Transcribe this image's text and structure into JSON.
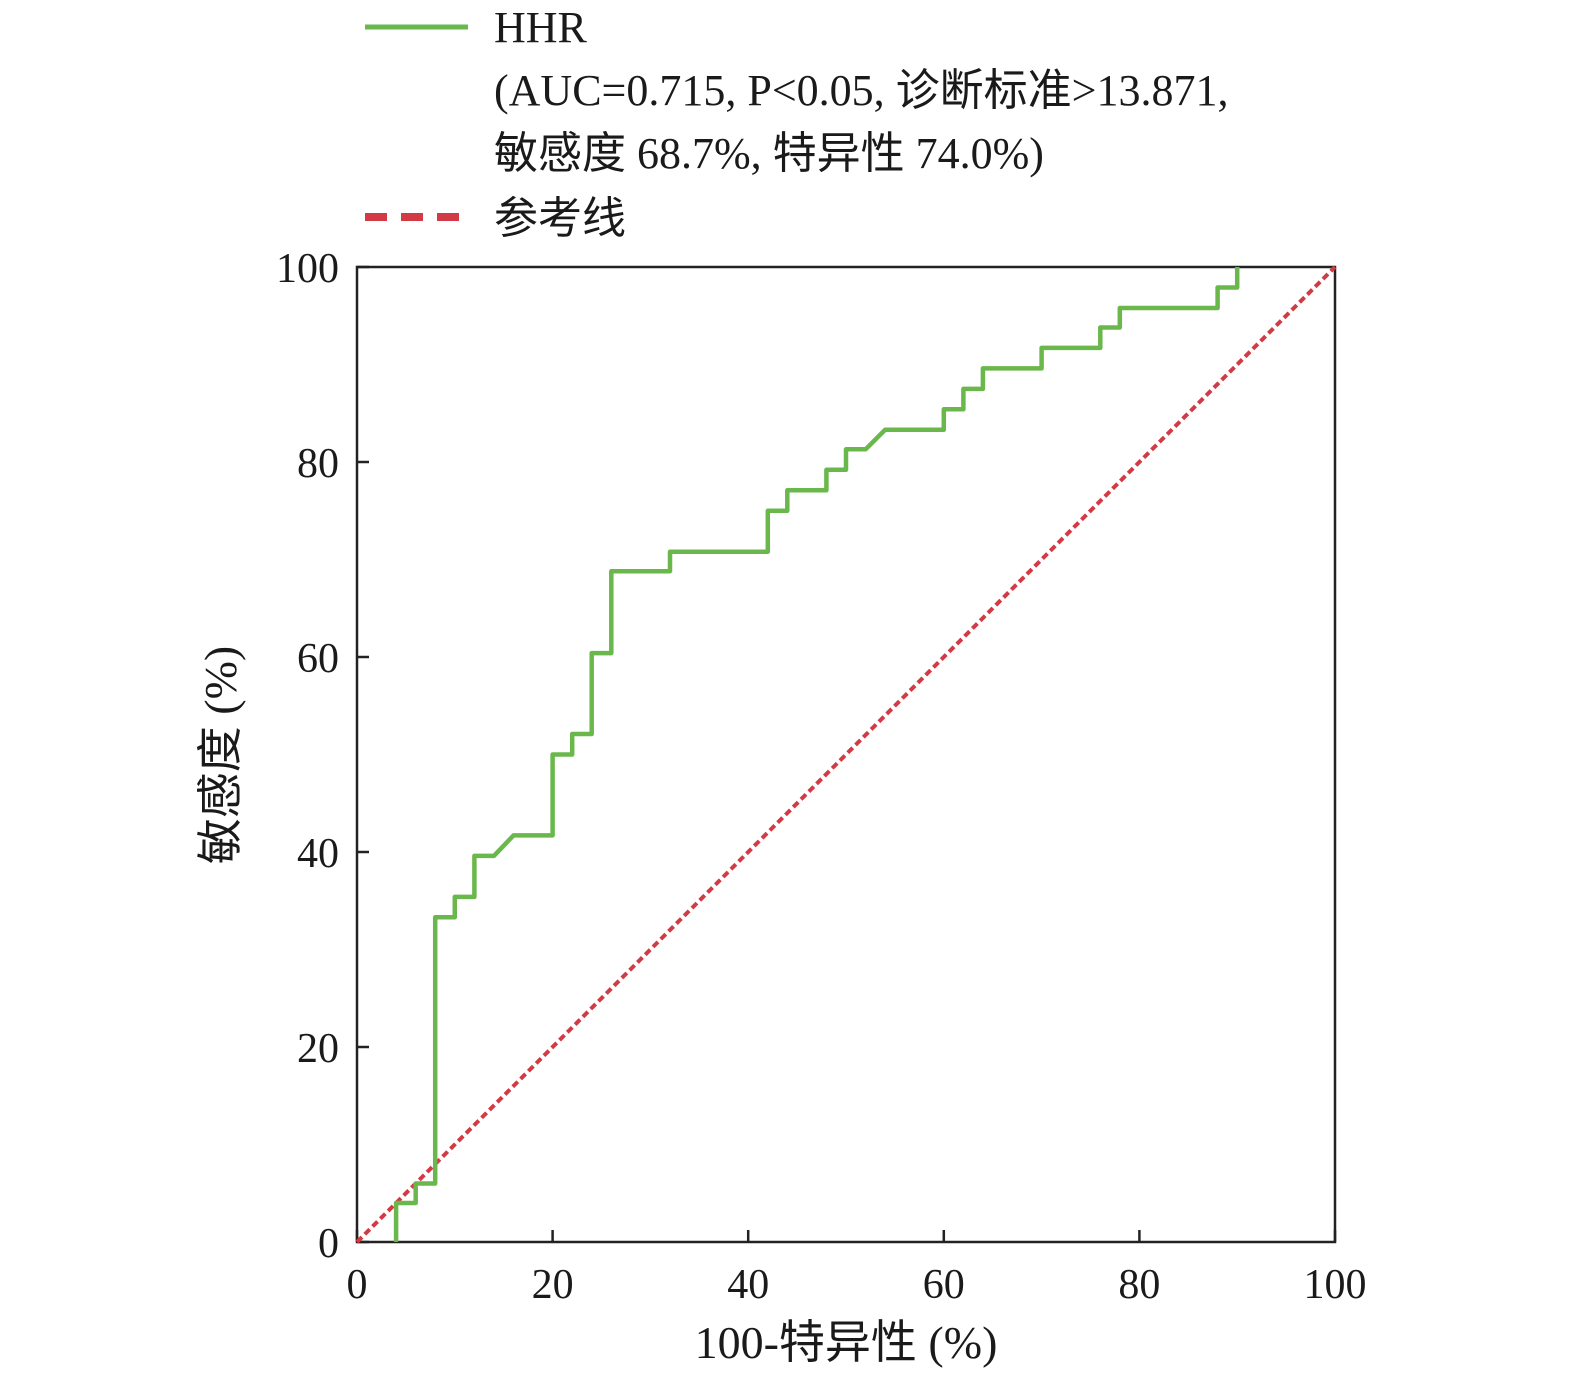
{
  "chart_data": {
    "type": "line",
    "title": "",
    "xlabel": "100-特异性 (%)",
    "ylabel": "敏感度 (%)",
    "xlim": [
      0,
      100
    ],
    "ylim": [
      0,
      100
    ],
    "xticks": [
      "0",
      "20",
      "40",
      "60",
      "80",
      "100"
    ],
    "yticks": [
      "0",
      "20",
      "40",
      "60",
      "80",
      "100"
    ],
    "grid": false,
    "legend_position": "top",
    "series": [
      {
        "name": "HHR",
        "style": "solid",
        "color": "#6ab84b",
        "points": [
          [
            4,
            0
          ],
          [
            4,
            4
          ],
          [
            6,
            4
          ],
          [
            6,
            6
          ],
          [
            8,
            6
          ],
          [
            8,
            33.3
          ],
          [
            10,
            33.3
          ],
          [
            10,
            35.4
          ],
          [
            12,
            35.4
          ],
          [
            12,
            39.6
          ],
          [
            14,
            39.6
          ],
          [
            16,
            41.7
          ],
          [
            20,
            41.7
          ],
          [
            20,
            50
          ],
          [
            22,
            50
          ],
          [
            22,
            52.1
          ],
          [
            24,
            52.1
          ],
          [
            24,
            60.4
          ],
          [
            26,
            60.4
          ],
          [
            26,
            68.8
          ],
          [
            32,
            68.8
          ],
          [
            32,
            70.8
          ],
          [
            42,
            70.8
          ],
          [
            42,
            75
          ],
          [
            44,
            75
          ],
          [
            44,
            77.1
          ],
          [
            48,
            77.1
          ],
          [
            48,
            79.2
          ],
          [
            50,
            79.2
          ],
          [
            50,
            81.3
          ],
          [
            52,
            81.3
          ],
          [
            54,
            83.3
          ],
          [
            60,
            83.3
          ],
          [
            60,
            85.4
          ],
          [
            62,
            85.4
          ],
          [
            62,
            87.5
          ],
          [
            64,
            87.5
          ],
          [
            64,
            89.6
          ],
          [
            70,
            89.6
          ],
          [
            70,
            91.7
          ],
          [
            76,
            91.7
          ],
          [
            76,
            93.8
          ],
          [
            78,
            93.8
          ],
          [
            78,
            95.8
          ],
          [
            88,
            95.8
          ],
          [
            88,
            97.9
          ],
          [
            90,
            97.9
          ],
          [
            90,
            100
          ]
        ]
      },
      {
        "name": "参考线",
        "style": "dashed",
        "color": "#d23a45",
        "points": [
          [
            0,
            0
          ],
          [
            100,
            100
          ]
        ]
      }
    ],
    "legend": {
      "entries": [
        {
          "label": "HHR",
          "details": [
            "(AUC=0.715, P<0.05, 诊断标准>13.871,",
            "敏感度 68.7%, 特异性 74.0%)"
          ]
        },
        {
          "label": "参考线"
        }
      ]
    }
  }
}
